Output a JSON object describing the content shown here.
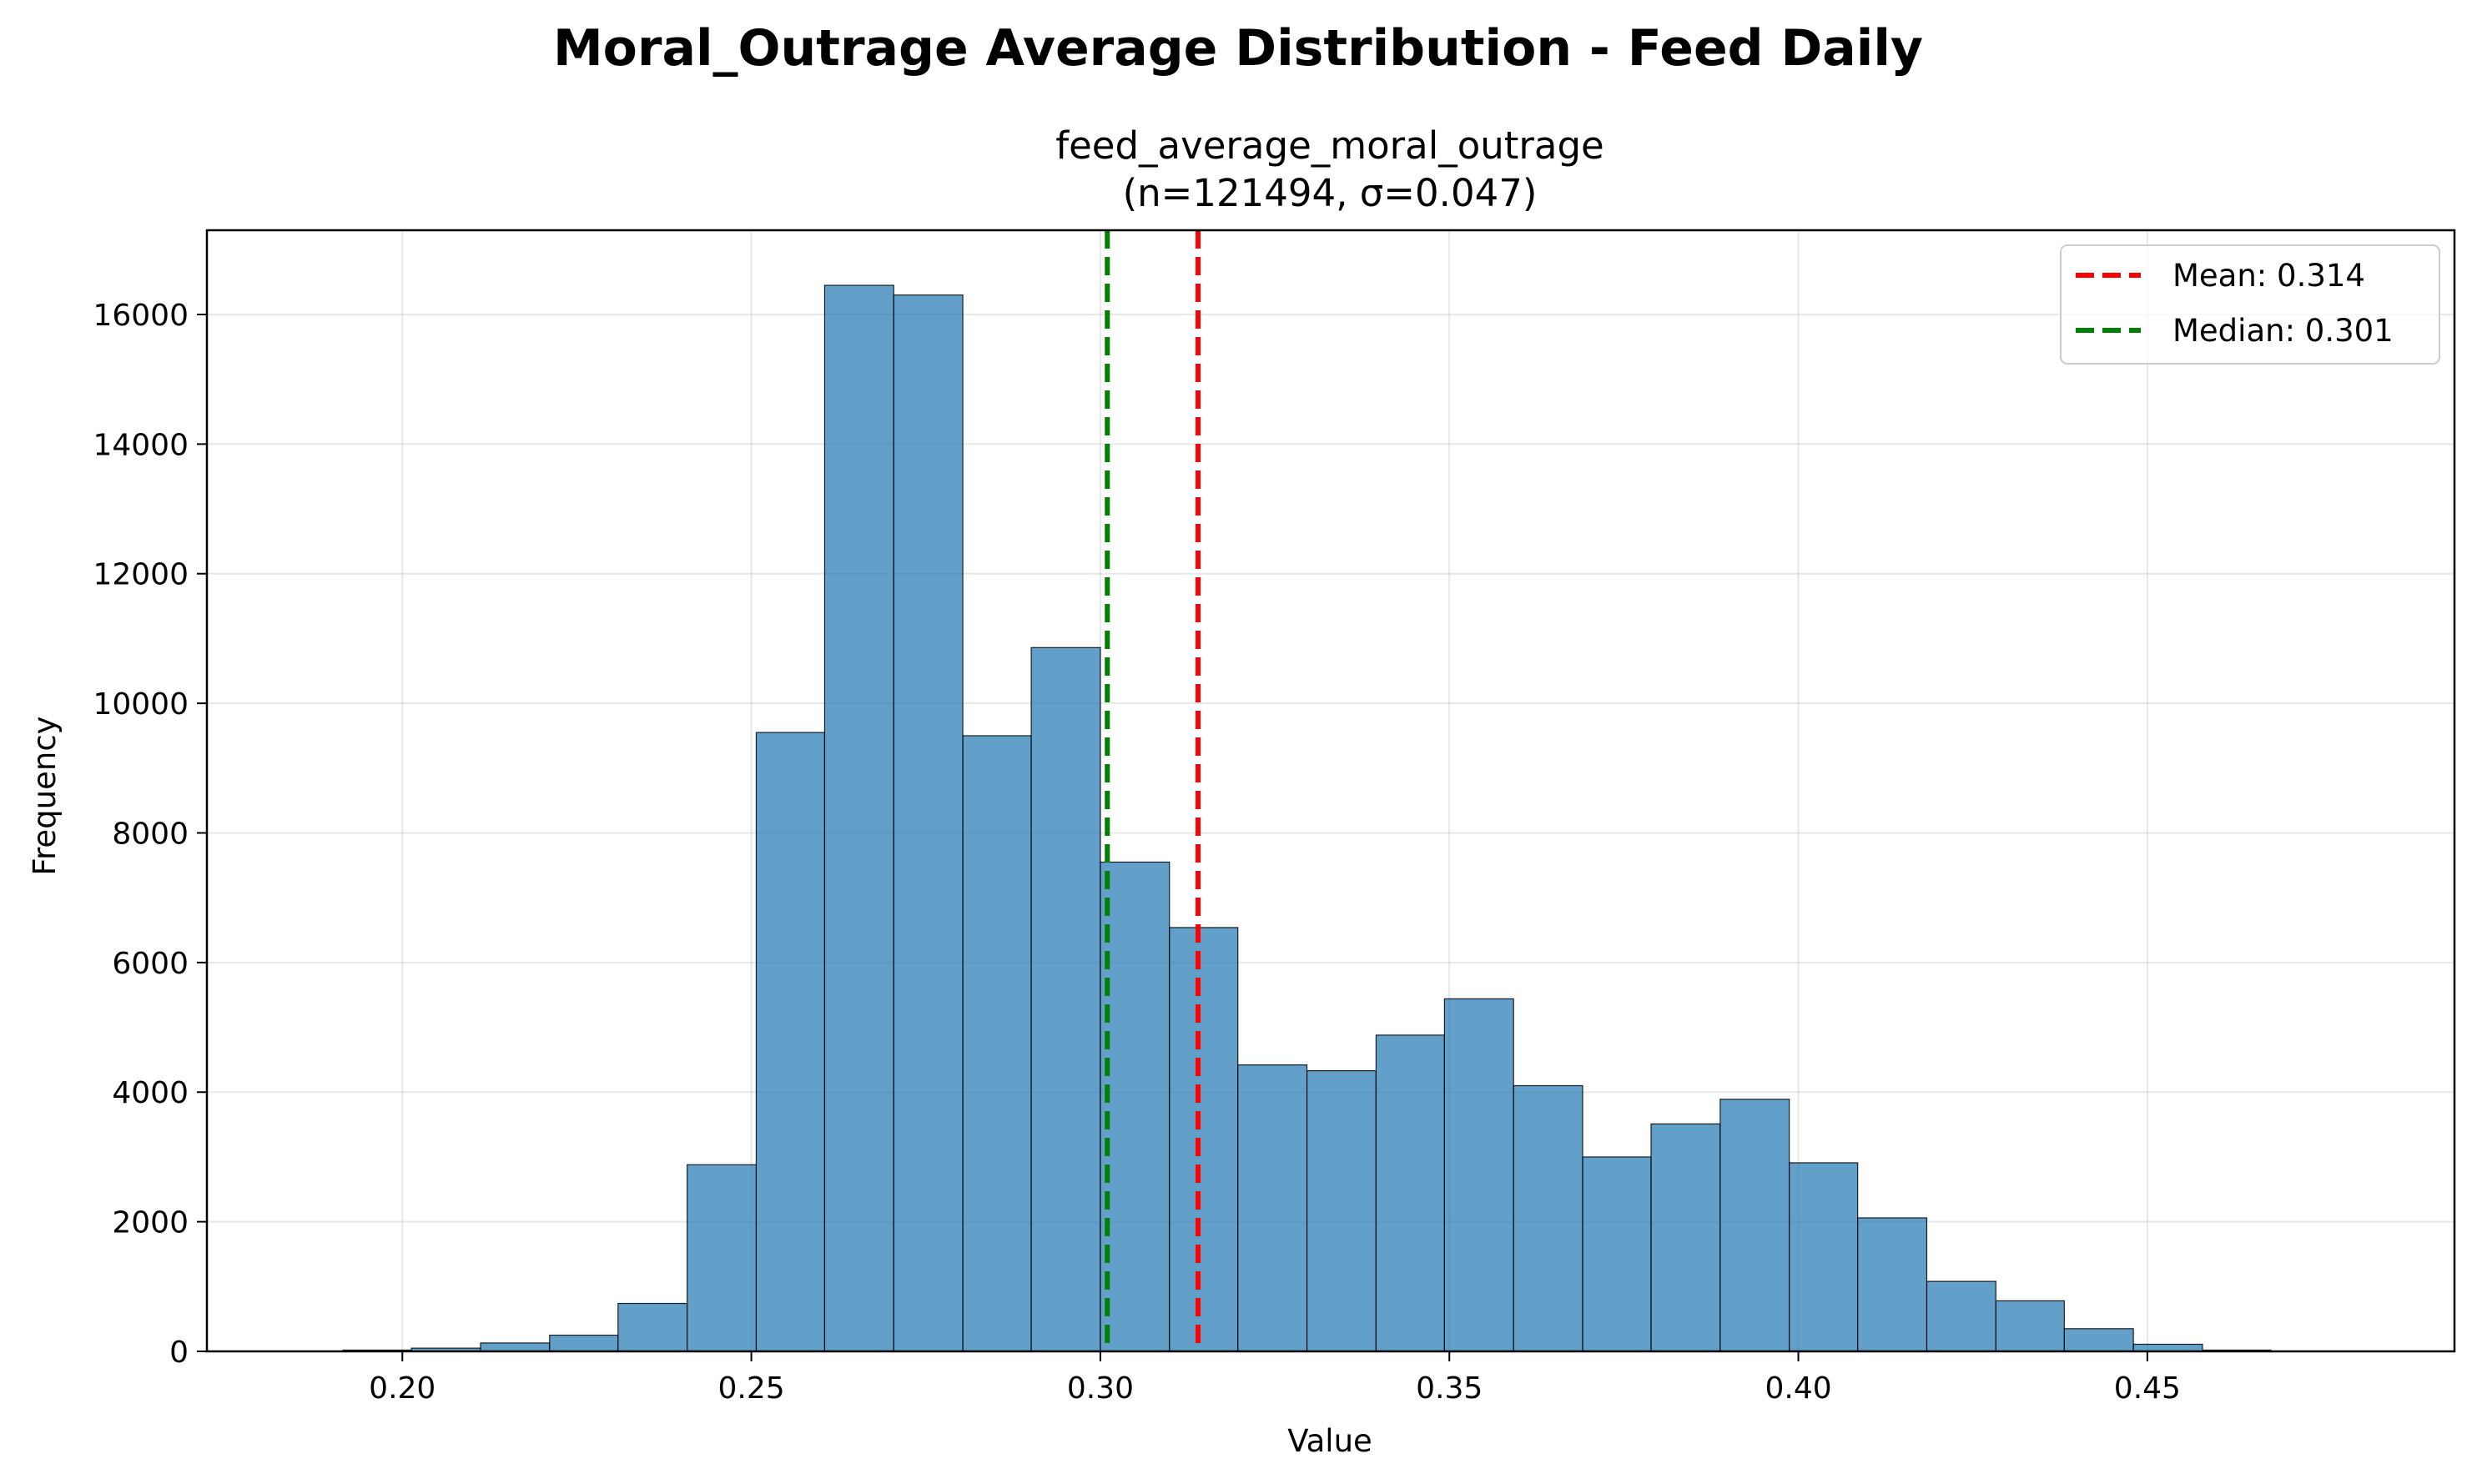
{
  "figure": {
    "suptitle": "Moral_Outrage Average Distribution - Feed Daily"
  },
  "chart_data": {
    "type": "bar",
    "title_line1": "feed_average_moral_outrage",
    "title_line2": "(n=121494, σ=0.047)",
    "xlabel": "Value",
    "ylabel": "Frequency",
    "xlim": [
      0.172,
      0.494
    ],
    "ylim": [
      0,
      17300
    ],
    "xticks": [
      0.2,
      0.25,
      0.3,
      0.35,
      0.4,
      0.45
    ],
    "xtick_labels": [
      "0.20",
      "0.25",
      "0.30",
      "0.35",
      "0.40",
      "0.45"
    ],
    "yticks": [
      0,
      2000,
      4000,
      6000,
      8000,
      10000,
      12000,
      14000,
      16000
    ],
    "ytick_labels": [
      "0",
      "2000",
      "4000",
      "6000",
      "8000",
      "10000",
      "12000",
      "14000",
      "16000"
    ],
    "grid": true,
    "bin_edges": [
      0.1816,
      0.1915,
      0.2013,
      0.2112,
      0.2211,
      0.2309,
      0.2408,
      0.2507,
      0.2605,
      0.2704,
      0.2803,
      0.2901,
      0.3,
      0.3099,
      0.3197,
      0.3296,
      0.3395,
      0.3493,
      0.3592,
      0.3691,
      0.3789,
      0.3888,
      0.3987,
      0.4085,
      0.4184,
      0.4283,
      0.4381,
      0.448,
      0.4579,
      0.4677,
      0.4776
    ],
    "counts": [
      5,
      20,
      50,
      130,
      250,
      740,
      2880,
      9550,
      16450,
      16300,
      9500,
      10860,
      7550,
      6540,
      4420,
      4330,
      4880,
      5440,
      4100,
      3000,
      3510,
      3890,
      2910,
      2060,
      1080,
      780,
      350,
      110,
      20,
      5
    ],
    "reference_lines": [
      {
        "label": "Mean: 0.314",
        "value": 0.314,
        "color": "#ff0000",
        "style": "dashed"
      },
      {
        "label": "Median: 0.301",
        "value": 0.301,
        "color": "#008000",
        "style": "dashed"
      }
    ],
    "bar_color": "#1f77b4",
    "legend_position": "top-right"
  }
}
